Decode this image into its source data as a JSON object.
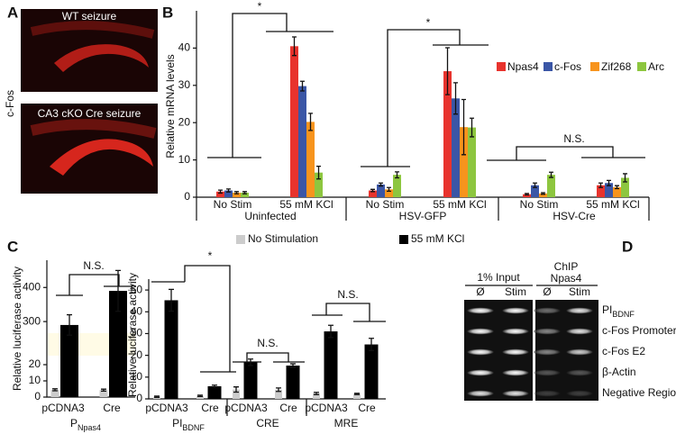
{
  "panel_labels": [
    "A",
    "B",
    "C",
    "D"
  ],
  "panel_a": {
    "stain": "c-Fos",
    "images": [
      "WT seizure",
      "CA3 cKO Cre seizure"
    ]
  },
  "chart_data": [
    {
      "type": "grouped-bar",
      "y_label": "Relative mRNA levels",
      "categories": [
        "No Stim",
        "55 mM KCl",
        "No Stim",
        "55 mM KCl",
        "No Stim",
        "55 mM KCl"
      ],
      "groups": [
        "Uninfected",
        "HSV-GFP",
        "HSV-Cre"
      ],
      "ylim": [
        0,
        50
      ],
      "yticks": [
        0,
        10,
        20,
        30,
        40
      ],
      "legend": "upper right",
      "series": [
        {
          "name": "Npas4",
          "color": "#e8332d",
          "values": [
            1.5,
            40.5,
            1.8,
            33.8,
            0.8,
            3.2
          ],
          "errors": [
            0.4,
            2.5,
            0.3,
            6.3,
            0.2,
            0.6
          ]
        },
        {
          "name": "c-Fos",
          "color": "#3a56a6",
          "values": [
            1.8,
            29.8,
            3.4,
            26.5,
            3.2,
            3.8
          ],
          "errors": [
            0.4,
            1.3,
            0.4,
            4.2,
            0.6,
            0.7
          ]
        },
        {
          "name": "Zif268",
          "color": "#f7941d",
          "values": [
            1.2,
            20.2,
            2.1,
            18.8,
            1.0,
            2.7
          ],
          "errors": [
            0.3,
            2.3,
            0.5,
            7.4,
            0.2,
            0.4
          ]
        },
        {
          "name": "Arc",
          "color": "#8dc63f",
          "values": [
            1.2,
            6.6,
            6.0,
            18.7,
            6.0,
            5.2
          ],
          "errors": [
            0.3,
            1.7,
            0.8,
            2.5,
            0.7,
            1.1
          ]
        }
      ],
      "annotations": [
        "*",
        "*",
        "N.S."
      ]
    },
    {
      "type": "paired-bar-panels",
      "series": [
        {
          "name": "No Stimulation",
          "color": "#cccccc"
        },
        {
          "name": "55 mM KCl",
          "color": "#000000"
        }
      ],
      "subplots": [
        {
          "y_label": "Relative luciferase activity",
          "ylim_lower": [
            0,
            25
          ],
          "ylim_upper": [
            266,
            480
          ],
          "yticks": [
            0,
            10,
            20,
            300,
            400
          ],
          "categories": [
            "pCDNA3",
            "Cre"
          ],
          "group_labels": [
            {
              "main": "P",
              "sub": "Npas4"
            }
          ],
          "values": [
            [
              4.5,
              4.3
            ],
            [
              290,
              390
            ]
          ],
          "errors": [
            [
              0.6,
              0.6
            ],
            [
              30,
              60
            ]
          ],
          "annotations": [
            "N.S."
          ]
        },
        {
          "y_label": "Relative luciferase activity",
          "ylim": [
            0,
            55
          ],
          "yticks": [
            0,
            10,
            20,
            30,
            40,
            50
          ],
          "categories": [
            "pCDNA3",
            "Cre",
            "pCDNA3",
            "Cre",
            "pCDNA3",
            "Cre"
          ],
          "group_labels": [
            {
              "main": "PI",
              "sub": "BDNF"
            },
            {
              "main": "CRE"
            },
            {
              "main": "MRE"
            }
          ],
          "values": [
            [
              1.0,
              1.4,
              4.3,
              4.2,
              2.5,
              2.3
            ],
            [
              45.3,
              5.8,
              16.8,
              15.3,
              31,
              25
            ]
          ],
          "errors": [
            [
              0.3,
              0.3,
              1.2,
              0.8,
              0.5,
              0.3
            ],
            [
              5,
              0.5,
              1.5,
              0.8,
              2.8,
              2.8
            ]
          ],
          "annotations": [
            "*",
            "N.S.",
            "N.S."
          ]
        }
      ]
    }
  ],
  "panel_d": {
    "input": "1% Input",
    "chip": [
      "ChIP",
      "Npas4"
    ],
    "lanes": [
      "Ø",
      "Stim",
      "Ø",
      "Stim"
    ],
    "rows": [
      {
        "main": "PI",
        "sub": "BDNF"
      },
      {
        "main": "c-Fos Promoter"
      },
      {
        "main": "c-Fos E2"
      },
      {
        "main": "β-Actin"
      },
      {
        "main": "Negative Region"
      }
    ]
  }
}
